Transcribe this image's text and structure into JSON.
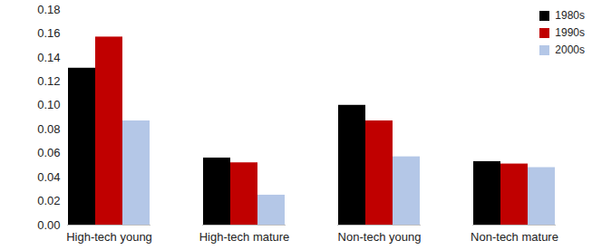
{
  "chart_data": {
    "type": "bar",
    "categories": [
      "High-tech young",
      "High-tech mature",
      "Non-tech young",
      "Non-tech mature"
    ],
    "series": [
      {
        "name": "1980s",
        "color": "#000000",
        "values": [
          0.131,
          0.056,
          0.1,
          0.053
        ]
      },
      {
        "name": "1990s",
        "color": "#c00000",
        "values": [
          0.157,
          0.052,
          0.087,
          0.051
        ]
      },
      {
        "name": "2000s",
        "color": "#b4c7e7",
        "values": [
          0.087,
          0.025,
          0.057,
          0.048
        ]
      }
    ],
    "ylim": [
      0,
      0.18
    ],
    "yticks": [
      {
        "value": 0,
        "label": "0.00"
      },
      {
        "value": 0.02,
        "label": "0.02"
      },
      {
        "value": 0.04,
        "label": "0.04"
      },
      {
        "value": 0.06,
        "label": "0.06"
      },
      {
        "value": 0.08,
        "label": "0.08"
      },
      {
        "value": 0.1,
        "label": "0.10"
      },
      {
        "value": 0.12,
        "label": "0.12"
      },
      {
        "value": 0.14,
        "label": "0.14"
      },
      {
        "value": 0.16,
        "label": "0.16"
      },
      {
        "value": 0.18,
        "label": "0.18"
      }
    ],
    "grid": false,
    "legend": "top-right"
  }
}
